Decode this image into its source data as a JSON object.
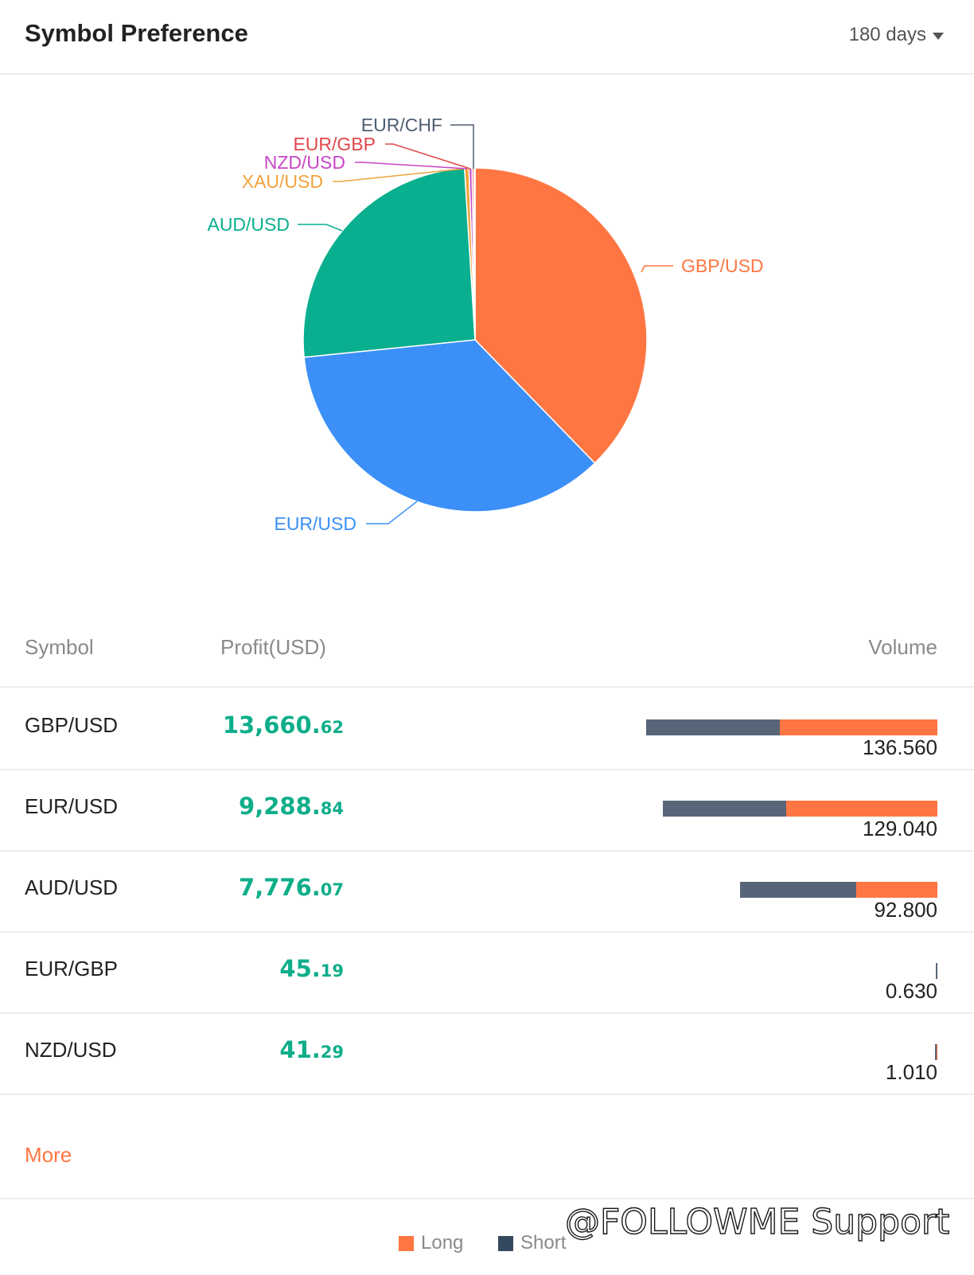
{
  "header": {
    "title": "Symbol Preference",
    "period": "180 days"
  },
  "chart_data": {
    "type": "pie",
    "slices": [
      {
        "label": "GBP/USD",
        "value": 136.56,
        "color": "#ff7642"
      },
      {
        "label": "EUR/USD",
        "value": 129.04,
        "color": "#3b8ff7"
      },
      {
        "label": "AUD/USD",
        "value": 92.8,
        "color": "#0aaf8f"
      },
      {
        "label": "XAU/USD",
        "value": 1.5,
        "color": "#f1a33c"
      },
      {
        "label": "NZD/USD",
        "value": 1.01,
        "color": "#c846c7"
      },
      {
        "label": "EUR/GBP",
        "value": 0.63,
        "color": "#e0484b"
      },
      {
        "label": "EUR/CHF",
        "value": 0.4,
        "color": "#4e5d73"
      }
    ]
  },
  "table": {
    "headers": {
      "symbol": "Symbol",
      "profit": "Profit(USD)",
      "volume": "Volume"
    },
    "rows": [
      {
        "symbol": "GBP/USD",
        "profit_int": "13,660.",
        "profit_dec": "62",
        "volume": "136.560",
        "short_frac": 0.46,
        "long_frac": 0.54
      },
      {
        "symbol": "EUR/USD",
        "profit_int": "9,288.",
        "profit_dec": "84",
        "volume": "129.040",
        "short_frac": 0.45,
        "long_frac": 0.55
      },
      {
        "symbol": "AUD/USD",
        "profit_int": "7,776.",
        "profit_dec": "07",
        "volume": "92.800",
        "short_frac": 0.59,
        "long_frac": 0.41
      },
      {
        "symbol": "EUR/GBP",
        "profit_int": "45.",
        "profit_dec": "19",
        "volume": "0.630",
        "short_frac": 1.0,
        "long_frac": 0.0
      },
      {
        "symbol": "NZD/USD",
        "profit_int": "41.",
        "profit_dec": "29",
        "volume": "1.010",
        "short_frac": 0.5,
        "long_frac": 0.5
      }
    ],
    "more_label": "More"
  },
  "legend": {
    "long": "Long",
    "short": "Short",
    "long_color": "#ff7642",
    "short_color": "#34495e"
  },
  "watermark": "@FOLLOWME Support"
}
